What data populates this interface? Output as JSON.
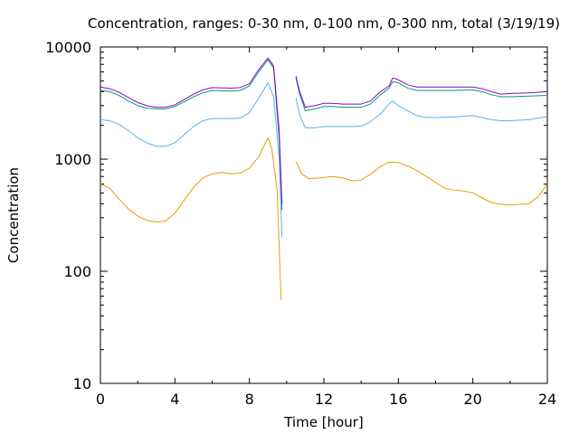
{
  "chart_data": {
    "type": "line",
    "title": "Concentration, ranges: 0-30 nm, 0-100 nm, 0-300 nm, total (3/19/19)",
    "xlabel": "Time [hour]",
    "ylabel": "Concentration",
    "xlim": [
      0,
      24
    ],
    "ylim": [
      10,
      10000
    ],
    "yscale": "log",
    "grid": false,
    "legend": "none",
    "xticks": [
      0,
      4,
      8,
      12,
      16,
      20,
      24
    ],
    "xtick_labels": [
      "0",
      "4",
      "8",
      "12",
      "16",
      "20",
      "24"
    ],
    "yticks": [
      10,
      100,
      1000,
      10000
    ],
    "ytick_labels": [
      "10",
      "100",
      "1000",
      "10000"
    ],
    "series": [
      {
        "color": "#e69f00",
        "segments": [
          [
            [
              0,
              600
            ],
            [
              0.5,
              550
            ],
            [
              1,
              440
            ],
            [
              1.5,
              360
            ],
            [
              2,
              310
            ],
            [
              2.5,
              285
            ],
            [
              3,
              275
            ],
            [
              3.5,
              280
            ],
            [
              4,
              330
            ],
            [
              4.5,
              430
            ],
            [
              5,
              560
            ],
            [
              5.5,
              680
            ],
            [
              6,
              740
            ],
            [
              6.5,
              760
            ],
            [
              7,
              740
            ],
            [
              7.5,
              750
            ],
            [
              8,
              830
            ],
            [
              8.5,
              1050
            ],
            [
              9,
              1550
            ],
            [
              9.2,
              1250
            ],
            [
              9.5,
              500
            ],
            [
              9.7,
              55
            ]
          ],
          [
            [
              10.5,
              960
            ],
            [
              10.8,
              740
            ],
            [
              11.2,
              670
            ],
            [
              11.8,
              680
            ],
            [
              12.5,
              700
            ],
            [
              13,
              680
            ],
            [
              13.5,
              640
            ],
            [
              14,
              650
            ],
            [
              14.5,
              730
            ],
            [
              15,
              850
            ],
            [
              15.5,
              940
            ],
            [
              16,
              930
            ],
            [
              16.5,
              870
            ],
            [
              17,
              790
            ],
            [
              17.5,
              700
            ],
            [
              18,
              620
            ],
            [
              18.5,
              550
            ],
            [
              19,
              530
            ],
            [
              19.5,
              520
            ],
            [
              20,
              500
            ],
            [
              20.5,
              450
            ],
            [
              21,
              410
            ],
            [
              21.5,
              395
            ],
            [
              22,
              390
            ],
            [
              22.5,
              395
            ],
            [
              23,
              400
            ],
            [
              23.5,
              460
            ],
            [
              24,
              600
            ]
          ]
        ]
      },
      {
        "color": "#56b4e9",
        "segments": [
          [
            [
              0,
              2250
            ],
            [
              0.5,
              2200
            ],
            [
              1,
              2050
            ],
            [
              1.5,
              1800
            ],
            [
              2,
              1550
            ],
            [
              2.5,
              1400
            ],
            [
              3,
              1300
            ],
            [
              3.5,
              1300
            ],
            [
              4,
              1400
            ],
            [
              4.5,
              1650
            ],
            [
              5,
              1950
            ],
            [
              5.5,
              2200
            ],
            [
              6,
              2300
            ],
            [
              7,
              2300
            ],
            [
              7.5,
              2320
            ],
            [
              8,
              2600
            ],
            [
              8.5,
              3500
            ],
            [
              9,
              4800
            ],
            [
              9.3,
              3600
            ],
            [
              9.6,
              1000
            ],
            [
              9.75,
              200
            ]
          ],
          [
            [
              10.5,
              3500
            ],
            [
              10.7,
              2500
            ],
            [
              11,
              1900
            ],
            [
              11.5,
              1900
            ],
            [
              12,
              1950
            ],
            [
              12.5,
              1950
            ],
            [
              13,
              1950
            ],
            [
              13.5,
              1950
            ],
            [
              14,
              1970
            ],
            [
              14.5,
              2150
            ],
            [
              15,
              2500
            ],
            [
              15.5,
              3100
            ],
            [
              15.7,
              3300
            ],
            [
              16,
              3000
            ],
            [
              16.5,
              2700
            ],
            [
              17,
              2450
            ],
            [
              17.5,
              2350
            ],
            [
              18,
              2350
            ],
            [
              19,
              2380
            ],
            [
              20,
              2450
            ],
            [
              20.5,
              2350
            ],
            [
              21,
              2250
            ],
            [
              21.5,
              2200
            ],
            [
              22,
              2200
            ],
            [
              23,
              2250
            ],
            [
              24,
              2400
            ]
          ]
        ]
      },
      {
        "color": "#009e73",
        "segments": [
          [
            [
              0,
              4100
            ],
            [
              0.5,
              4000
            ],
            [
              1,
              3700
            ],
            [
              1.5,
              3300
            ],
            [
              2,
              3000
            ],
            [
              2.5,
              2850
            ],
            [
              3,
              2800
            ],
            [
              3.5,
              2800
            ],
            [
              4,
              2950
            ],
            [
              4.5,
              3250
            ],
            [
              5,
              3600
            ],
            [
              5.5,
              3900
            ],
            [
              6,
              4100
            ],
            [
              7,
              4050
            ],
            [
              7.5,
              4100
            ],
            [
              8,
              4500
            ],
            [
              8.5,
              6000
            ],
            [
              9,
              7700
            ],
            [
              9.3,
              6500
            ],
            [
              9.6,
              1500
            ],
            [
              9.75,
              350
            ]
          ],
          [
            [
              10.5,
              5300
            ],
            [
              10.7,
              3800
            ],
            [
              11,
              2700
            ],
            [
              11.5,
              2800
            ],
            [
              12,
              2950
            ],
            [
              12.5,
              2950
            ],
            [
              13,
              2900
            ],
            [
              13.5,
              2900
            ],
            [
              14,
              2900
            ],
            [
              14.5,
              3100
            ],
            [
              15,
              3700
            ],
            [
              15.5,
              4300
            ],
            [
              15.7,
              4900
            ],
            [
              16,
              4800
            ],
            [
              16.5,
              4300
            ],
            [
              17,
              4100
            ],
            [
              18,
              4100
            ],
            [
              19,
              4100
            ],
            [
              20,
              4150
            ],
            [
              20.5,
              4000
            ],
            [
              21,
              3750
            ],
            [
              21.5,
              3600
            ],
            [
              22,
              3600
            ],
            [
              23,
              3650
            ],
            [
              24,
              3700
            ]
          ]
        ]
      },
      {
        "color": "#9400d3",
        "segments": [
          [
            [
              0,
              4400
            ],
            [
              0.5,
              4250
            ],
            [
              1,
              3950
            ],
            [
              1.5,
              3550
            ],
            [
              2,
              3200
            ],
            [
              2.5,
              3000
            ],
            [
              3,
              2900
            ],
            [
              3.5,
              2900
            ],
            [
              4,
              3050
            ],
            [
              4.5,
              3400
            ],
            [
              5,
              3800
            ],
            [
              5.5,
              4150
            ],
            [
              6,
              4350
            ],
            [
              7,
              4300
            ],
            [
              7.5,
              4350
            ],
            [
              8,
              4700
            ],
            [
              8.5,
              6300
            ],
            [
              9,
              8000
            ],
            [
              9.3,
              6800
            ],
            [
              9.6,
              1800
            ],
            [
              9.75,
              400
            ]
          ],
          [
            [
              10.5,
              5500
            ],
            [
              10.7,
              4000
            ],
            [
              11,
              2900
            ],
            [
              11.5,
              3000
            ],
            [
              12,
              3150
            ],
            [
              12.5,
              3150
            ],
            [
              13,
              3100
            ],
            [
              13.5,
              3100
            ],
            [
              14,
              3100
            ],
            [
              14.5,
              3300
            ],
            [
              15,
              3950
            ],
            [
              15.5,
              4500
            ],
            [
              15.7,
              5300
            ],
            [
              16,
              5100
            ],
            [
              16.5,
              4600
            ],
            [
              17,
              4400
            ],
            [
              18,
              4400
            ],
            [
              19,
              4400
            ],
            [
              20,
              4400
            ],
            [
              20.5,
              4250
            ],
            [
              21,
              4000
            ],
            [
              21.5,
              3800
            ],
            [
              22,
              3850
            ],
            [
              23,
              3900
            ],
            [
              24,
              4000
            ]
          ]
        ]
      }
    ]
  }
}
